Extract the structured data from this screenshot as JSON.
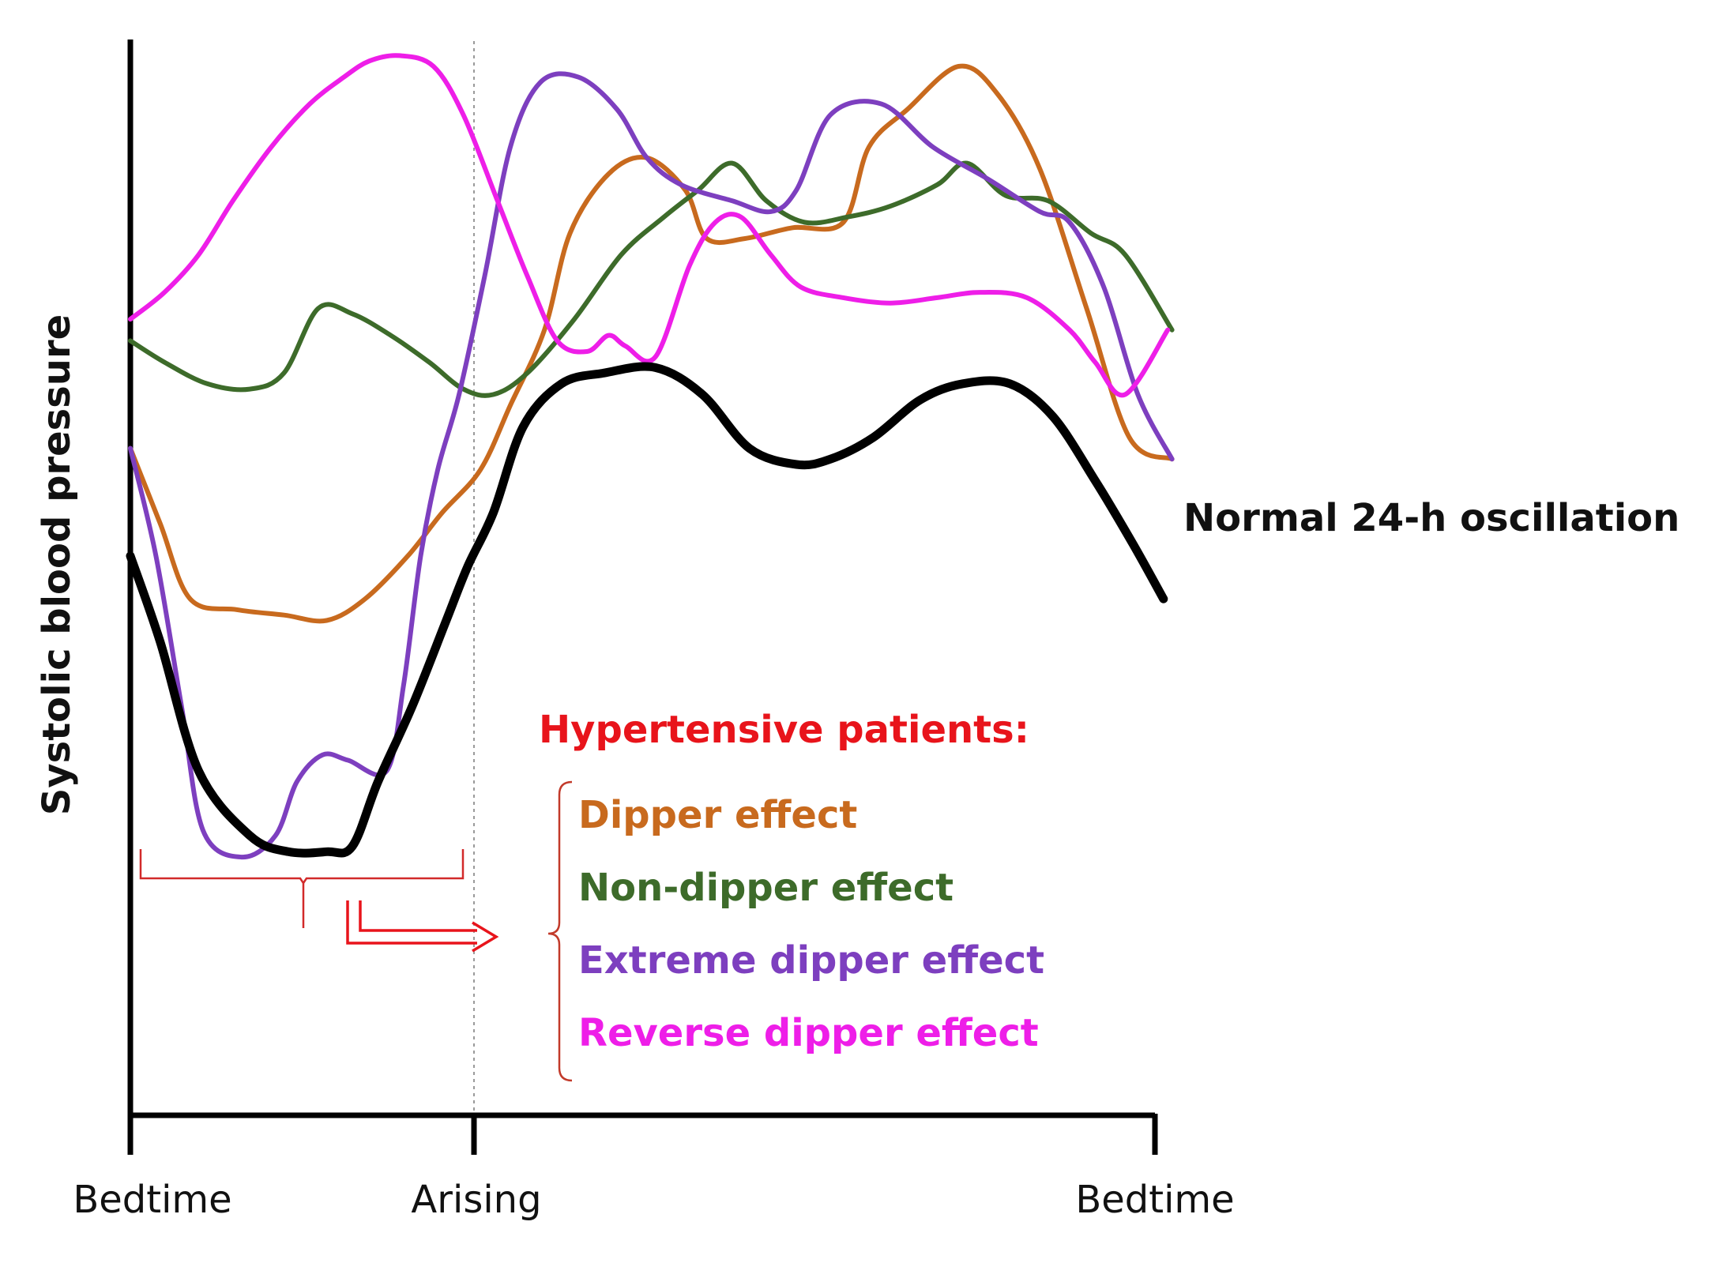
{
  "chart_data": {
    "type": "line",
    "xlabel": "",
    "ylabel": "Systolic blood pressure",
    "x_ticks": [
      "Bedtime",
      "Arising",
      "Bedtime"
    ],
    "x_tick_hours": [
      0,
      8,
      24
    ],
    "xlim": [
      0,
      24
    ],
    "ylim": [
      0,
      100
    ],
    "grid": false,
    "annotation_line_label": "",
    "normal_series_label": "Normal 24-h oscillation",
    "legend": {
      "title": "Hypertensive patients:",
      "title_color": "#e8141b",
      "placement": "center-right, inside plot",
      "entries": [
        {
          "label": "Dipper effect",
          "color": "#c86a1e"
        },
        {
          "label": "Non-dipper effect",
          "color": "#3d6b2a"
        },
        {
          "label": "Extreme dipper effect",
          "color": "#7d3fbf"
        },
        {
          "label": "Reverse dipper effect",
          "color": "#ee1ee8"
        }
      ]
    },
    "series": [
      {
        "name": "Normal 24-h oscillation",
        "color": "#000000",
        "x": [
          0,
          0.7,
          1.6,
          2.8,
          3.7,
          4.6,
          5.2,
          5.8,
          6.6,
          7.4,
          7.9,
          8.5,
          9.2,
          10.1,
          11.1,
          12.3,
          13.4,
          14.5,
          15.6,
          16.4,
          17.4,
          18.5,
          19.5,
          20.6,
          21.6,
          22.6,
          23.5,
          24.2
        ],
        "y": [
          52,
          44,
          32,
          26,
          24.5,
          24.5,
          25,
          31,
          38,
          46,
          51,
          56,
          64,
          68,
          69,
          69.5,
          67,
          62,
          60.5,
          61,
          63,
          66.5,
          68,
          68,
          65,
          59,
          53,
          48
        ]
      },
      {
        "name": "Dipper effect",
        "color": "#c86a1e",
        "x": [
          0,
          0.7,
          1.4,
          2.5,
          3.6,
          4.6,
          5.5,
          6.5,
          7.3,
          8.2,
          8.9,
          9.7,
          10.3,
          11.2,
          12.1,
          13.0,
          13.5,
          14.4,
          15.5,
          16.7,
          17.3,
          18.2,
          19.4,
          20.3,
          21.3,
          22.4,
          23.4,
          24.4
        ],
        "y": [
          62,
          55,
          48,
          47,
          46.5,
          46,
          48,
          52,
          56,
          60,
          66,
          73,
          82,
          87.5,
          89,
          86,
          81.5,
          81.5,
          82.5,
          83,
          90,
          93.5,
          97.5,
          95,
          88,
          75,
          63,
          61
        ]
      },
      {
        "name": "Non-dipper effect",
        "color": "#3d6b2a",
        "x": [
          0,
          0.8,
          1.8,
          2.8,
          3.6,
          4.4,
          5.2,
          6.1,
          7.0,
          7.8,
          8.5,
          9.3,
          10.4,
          11.5,
          12.5,
          13.3,
          14.1,
          14.9,
          15.8,
          16.8,
          17.8,
          18.9,
          19.6,
          20.5,
          21.5,
          22.5,
          23.3,
          24.4
        ],
        "y": [
          72,
          70,
          68,
          67.5,
          69,
          75,
          74.5,
          72.5,
          70,
          67.5,
          67,
          69,
          74,
          80,
          83.5,
          86,
          88.5,
          85,
          83,
          83.5,
          84.5,
          86.5,
          88.5,
          85.5,
          85,
          82,
          80,
          73
        ]
      },
      {
        "name": "Extreme dipper effect",
        "color": "#7d3fbf",
        "x": [
          0,
          0.6,
          1.2,
          1.7,
          2.6,
          3.4,
          3.9,
          4.5,
          5.1,
          6.0,
          6.4,
          6.8,
          7.2,
          7.7,
          8.3,
          8.9,
          9.6,
          10.5,
          11.4,
          12.1,
          12.9,
          14.1,
          15.0,
          15.6,
          16.4,
          17.6,
          18.8,
          20.1,
          21.3,
          22.0,
          22.8,
          23.6,
          24.4
        ],
        "y": [
          62,
          52,
          38,
          26.5,
          24,
          26,
          31,
          33.5,
          33,
          32,
          40,
          52,
          60,
          67,
          78,
          90,
          96,
          96.5,
          93.5,
          89,
          86.5,
          85,
          84,
          86,
          93,
          94,
          90,
          87,
          84,
          83,
          77,
          67,
          61
        ]
      },
      {
        "name": "Reverse dipper effect",
        "color": "#ee1ee8",
        "x": [
          0,
          0.8,
          1.6,
          2.4,
          3.3,
          4.2,
          5.0,
          5.6,
          6.3,
          7.1,
          7.8,
          8.6,
          9.3,
          10.0,
          10.7,
          11.2,
          11.6,
          12.3,
          13.1,
          13.7,
          14.3,
          15.0,
          15.7,
          16.7,
          17.8,
          18.9,
          19.9,
          21.0,
          22.0,
          22.6,
          23.3,
          24.3
        ],
        "y": [
          74,
          76.5,
          80,
          85,
          90,
          94,
          96.5,
          98,
          98.5,
          97.5,
          93,
          85,
          78,
          72,
          71,
          72.5,
          71.5,
          70.5,
          79,
          83,
          83.5,
          80,
          77,
          76,
          75.5,
          76,
          76.5,
          76,
          73,
          70,
          67,
          73
        ]
      }
    ]
  }
}
